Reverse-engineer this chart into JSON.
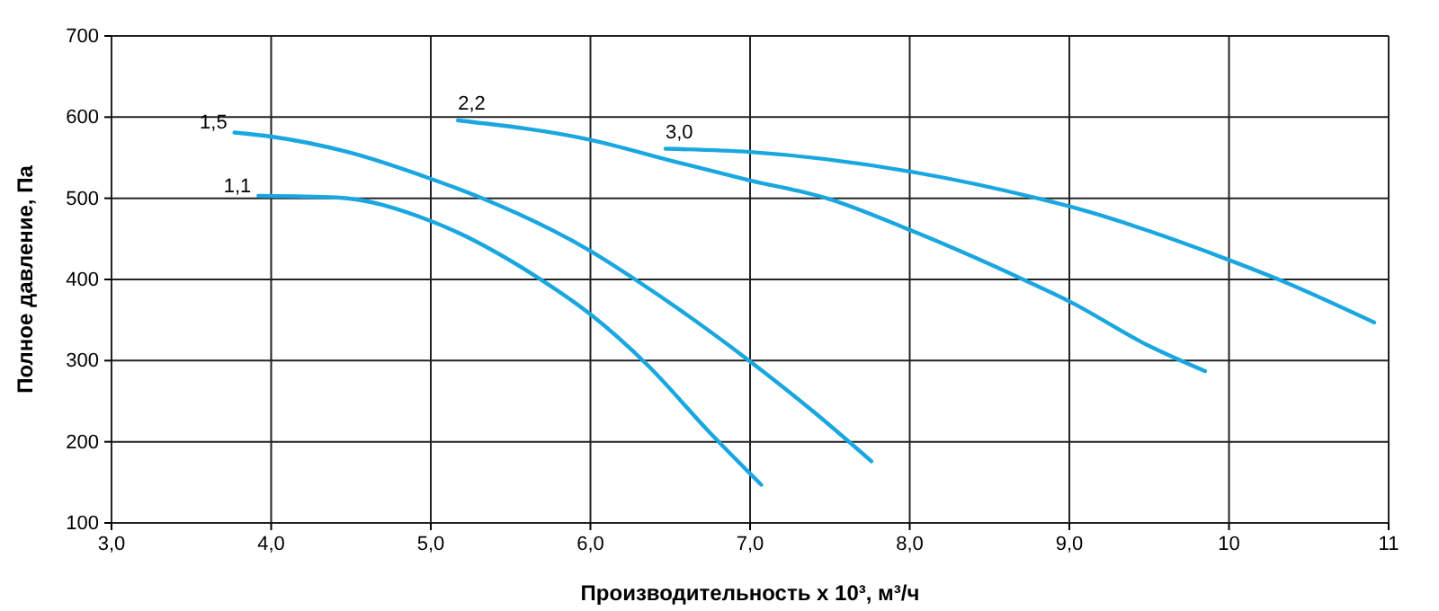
{
  "chart_data": {
    "type": "line",
    "xlabel": "Производительность х 10³, м³/ч",
    "ylabel": "Полное давление, Па",
    "xlim": [
      3,
      11
    ],
    "xticks": [
      {
        "value": 3,
        "label": "3,0"
      },
      {
        "value": 4,
        "label": "4,0"
      },
      {
        "value": 5,
        "label": "5,0"
      },
      {
        "value": 6,
        "label": "6,0"
      },
      {
        "value": 7,
        "label": "7,0"
      },
      {
        "value": 8,
        "label": "8,0"
      },
      {
        "value": 9,
        "label": "9,0"
      },
      10,
      11
    ],
    "ylim": [
      100,
      700
    ],
    "yticks": [
      100,
      200,
      300,
      400,
      500,
      600,
      700
    ],
    "grid": true,
    "marker": "none",
    "line_style": "solid",
    "series": [
      {
        "name": "1,1",
        "color": "#1aa7e0",
        "x": [
          3.92,
          4.41,
          5.0,
          5.68,
          6.0,
          6.36,
          6.74,
          7.07
        ],
        "values": [
          503,
          501,
          472,
          401,
          357,
          294,
          213,
          147
        ]
      },
      {
        "name": "1,5",
        "color": "#1aa7e0",
        "x": [
          3.77,
          4.0,
          4.48,
          5.0,
          5.31,
          6.0,
          6.28,
          7.0,
          7.41,
          7.76
        ],
        "values": [
          581,
          576,
          557,
          524,
          501,
          435,
          400,
          299,
          235,
          176
        ]
      },
      {
        "name": "2,2",
        "color": "#1aa7e0",
        "x": [
          5.17,
          6.0,
          6.51,
          7.0,
          7.48,
          8.0,
          8.71,
          9.0,
          9.48,
          9.85
        ],
        "values": [
          596,
          572,
          546,
          522,
          500,
          461,
          400,
          373,
          320,
          287
        ]
      },
      {
        "name": "3,0",
        "color": "#1aa7e0",
        "x": [
          6.47,
          7.0,
          8.0,
          8.8,
          9.0,
          10.0,
          10.31,
          10.91
        ],
        "values": [
          561,
          557,
          533,
          500,
          490,
          424,
          400,
          347
        ]
      }
    ]
  }
}
